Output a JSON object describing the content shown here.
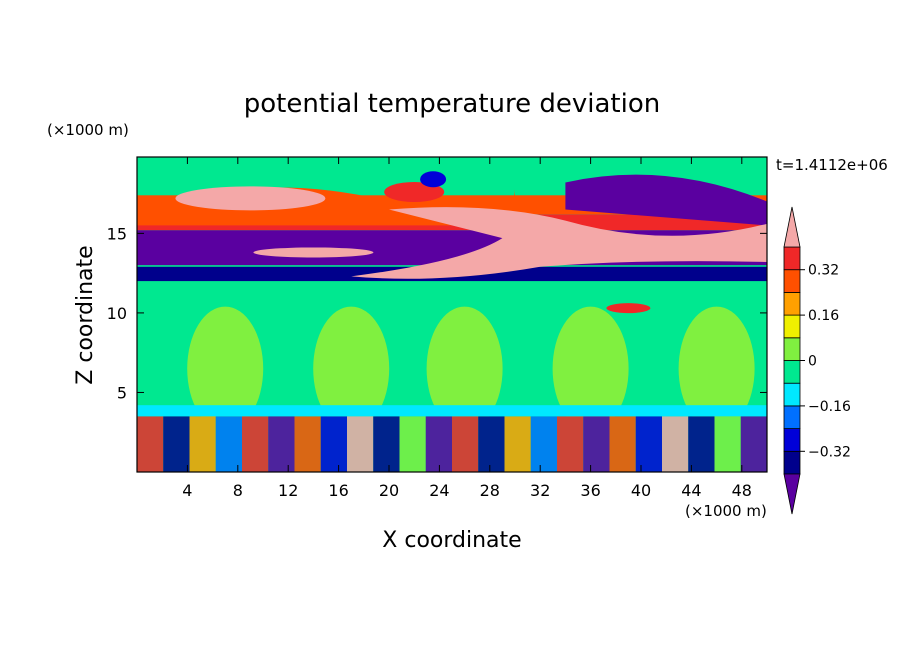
{
  "chart_data": {
    "type": "heatmap",
    "title": "potential temperature deviation",
    "xlabel": "X coordinate",
    "ylabel": "Z coordinate",
    "x_unit_label": "(×1000 m)",
    "y_unit_label": "(×1000 m)",
    "time_label": "t=1.4112e+06",
    "xlim": [
      0,
      50
    ],
    "ylim": [
      0,
      19.8
    ],
    "x_ticks": [
      4,
      8,
      12,
      16,
      20,
      24,
      28,
      32,
      36,
      40,
      44,
      48
    ],
    "y_ticks": [
      5,
      10,
      15
    ],
    "colorbar": {
      "levels": [
        -0.4,
        -0.32,
        -0.24,
        -0.16,
        -0.08,
        0,
        0.08,
        0.16,
        0.24,
        0.32,
        0.4
      ],
      "labeled_levels": [
        {
          "value": -0.32,
          "label": "−0.32"
        },
        {
          "value": -0.16,
          "label": "−0.16"
        },
        {
          "value": 0,
          "label": "0"
        },
        {
          "value": 0.16,
          "label": "0.16"
        },
        {
          "value": 0.32,
          "label": "0.32"
        }
      ],
      "colors": [
        "#5a00a0",
        "#00008c",
        "#0000d8",
        "#0070ff",
        "#00e8ff",
        "#00e890",
        "#80f040",
        "#f0f000",
        "#ffa000",
        "#ff5000",
        "#f02828",
        "#f4a8a8"
      ],
      "extend": "both"
    },
    "bands": [
      {
        "z0": 0,
        "z1": 3.5,
        "value": "mixed",
        "note": "alternating strong plumes"
      },
      {
        "z0": 3.5,
        "z1": 12,
        "value": 0.02
      },
      {
        "z0": 12,
        "z1": 13,
        "value": -0.4
      },
      {
        "z0": 13,
        "z1": 15.2,
        "value": -0.35
      },
      {
        "z0": 15.2,
        "z1": 17.2,
        "value": 0.45
      },
      {
        "z0": 17.2,
        "z1": 19.8,
        "value": 0.0
      }
    ],
    "grid": false,
    "legend": "colorbar-right"
  }
}
